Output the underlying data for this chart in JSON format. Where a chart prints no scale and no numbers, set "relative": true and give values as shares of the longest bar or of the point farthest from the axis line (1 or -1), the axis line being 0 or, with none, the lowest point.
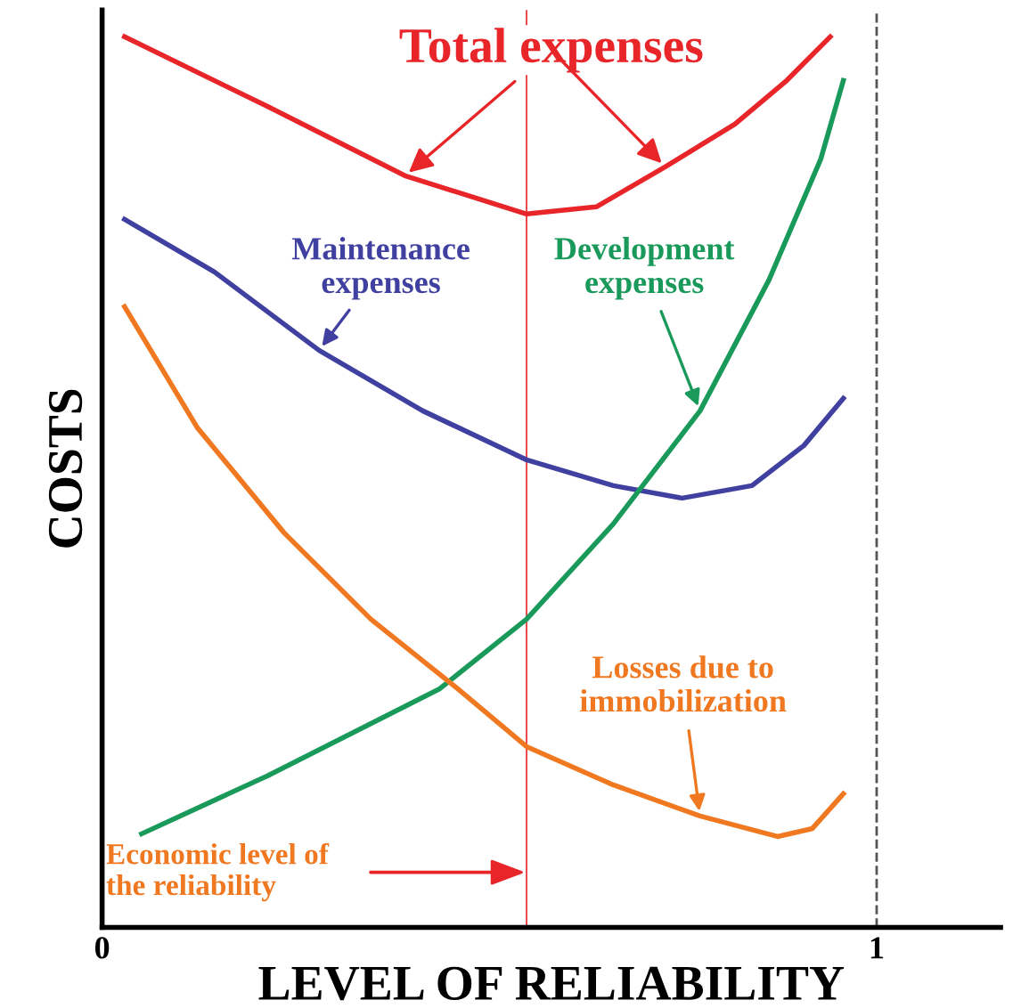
{
  "chart_data": {
    "type": "line",
    "relative": true,
    "xlabel": "LEVEL OF RELIABILITY",
    "ylabel": "COSTS",
    "xlim": [
      0,
      1.16
    ],
    "xticks": [
      0,
      1
    ],
    "grid": false,
    "legend": false,
    "marker": "none",
    "line_style": "solid",
    "series": [
      {
        "name": "Total expenses",
        "color": "#e8262a",
        "x": [
          0.029,
          0.213,
          0.391,
          0.548,
          0.638,
          0.727,
          0.817,
          0.884,
          0.94
        ],
        "values": [
          1.0,
          0.922,
          0.844,
          0.801,
          0.809,
          0.854,
          0.902,
          0.951,
          1.0
        ]
      },
      {
        "name": "Maintenance expenses",
        "color": "#4040a0",
        "x": [
          0.029,
          0.145,
          0.28,
          0.414,
          0.548,
          0.66,
          0.749,
          0.839,
          0.906,
          0.957
        ],
        "values": [
          0.795,
          0.736,
          0.648,
          0.58,
          0.525,
          0.496,
          0.482,
          0.496,
          0.541,
          0.594
        ]
      },
      {
        "name": "Development expenses",
        "color": "#1a9a5a",
        "x": [
          0.051,
          0.213,
          0.436,
          0.548,
          0.66,
          0.772,
          0.861,
          0.928,
          0.957
        ],
        "values": [
          0.105,
          0.17,
          0.268,
          0.346,
          0.453,
          0.58,
          0.727,
          0.863,
          0.951
        ]
      },
      {
        "name": "Losses due to immobilization",
        "color": "#f07820",
        "x": [
          0.029,
          0.123,
          0.235,
          0.347,
          0.459,
          0.548,
          0.66,
          0.772,
          0.872,
          0.917,
          0.957
        ],
        "values": [
          0.697,
          0.561,
          0.443,
          0.346,
          0.268,
          0.203,
          0.16,
          0.125,
          0.102,
          0.111,
          0.15
        ]
      }
    ],
    "ref_lines": [
      {
        "axis": "x",
        "value": 0.548,
        "color": "#e8262a",
        "line_style": "solid"
      },
      {
        "axis": "x",
        "value": 1,
        "color": "#555555",
        "line_style": "dashed"
      }
    ],
    "annotations": [
      "Economic level of\nthe reliability"
    ]
  }
}
